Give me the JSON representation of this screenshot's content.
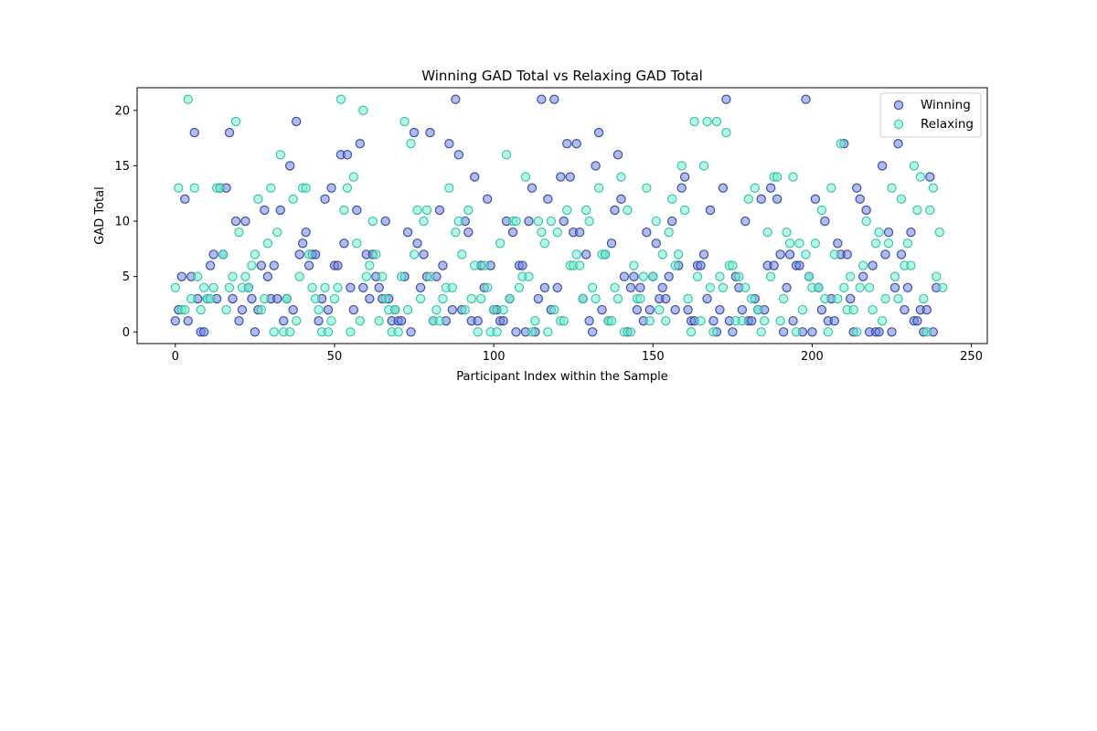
{
  "chart_data": {
    "type": "scatter",
    "title": "Winning GAD Total vs Relaxing GAD Total",
    "xlabel": "Participant Index within the Sample",
    "ylabel": "GAD Total",
    "xlim": [
      -12,
      255
    ],
    "ylim": [
      -1.05,
      22.05
    ],
    "xticks": [
      0,
      50,
      100,
      150,
      200,
      250
    ],
    "yticks": [
      0,
      5,
      10,
      15,
      20
    ],
    "grid": false,
    "legend_position": "top-right",
    "series": [
      {
        "name": "Winning",
        "face_color": "#6f86dd",
        "edge_color": "#2c3e9e",
        "y": [
          1,
          2,
          5,
          12,
          1,
          5,
          18,
          3,
          0,
          0,
          3,
          6,
          7,
          3,
          13,
          7,
          13,
          18,
          3,
          10,
          1,
          2,
          10,
          4,
          3,
          0,
          2,
          6,
          11,
          5,
          3,
          6,
          3,
          11,
          1,
          3,
          15,
          2,
          19,
          7,
          8,
          9,
          6,
          7,
          7,
          1,
          3,
          12,
          2,
          13,
          6,
          6,
          16,
          8,
          16,
          4,
          2,
          11,
          17,
          4,
          7,
          3,
          7,
          5,
          4,
          3,
          10,
          3,
          1,
          2,
          1,
          1,
          5,
          9,
          0,
          18,
          8,
          4,
          7,
          5,
          18,
          1,
          5,
          11,
          6,
          1,
          17,
          2,
          21,
          16,
          2,
          10,
          9,
          1,
          14,
          1,
          6,
          4,
          12,
          6,
          2,
          2,
          1,
          1,
          10,
          3,
          9,
          0,
          6,
          6,
          0,
          10,
          13,
          0,
          3,
          21,
          4,
          12,
          2,
          21,
          4,
          14,
          10,
          17,
          14,
          9,
          17,
          9,
          3,
          7,
          1,
          0,
          15,
          18,
          2,
          7,
          1,
          8,
          11,
          16,
          12,
          5,
          0,
          4,
          5,
          2,
          4,
          1,
          9,
          2,
          5,
          8,
          3,
          4,
          3,
          5,
          10,
          2,
          6,
          13,
          14,
          2,
          1,
          1,
          6,
          6,
          7,
          3,
          11,
          1,
          0,
          2,
          13,
          21,
          1,
          0,
          5,
          4,
          2,
          10,
          1,
          1,
          3,
          2,
          12,
          2,
          6,
          13,
          6,
          12,
          7,
          0,
          4,
          7,
          1,
          6,
          6,
          0,
          21,
          5,
          0,
          12,
          4,
          2,
          10,
          1,
          3,
          1,
          8,
          7,
          17,
          7,
          3,
          0,
          13,
          12,
          5,
          11,
          0,
          6,
          0,
          0,
          15,
          7,
          9,
          0,
          4,
          17,
          7,
          2,
          4,
          9,
          1,
          1,
          2,
          0,
          2,
          14,
          0,
          4
        ]
      },
      {
        "name": "Relaxing",
        "face_color": "#7cf2d6",
        "edge_color": "#2bbf9d",
        "y": [
          4,
          13,
          2,
          2,
          21,
          3,
          13,
          5,
          2,
          4,
          3,
          3,
          4,
          13,
          13,
          7,
          2,
          4,
          5,
          19,
          9,
          4,
          5,
          4,
          6,
          7,
          12,
          2,
          3,
          8,
          13,
          0,
          9,
          16,
          0,
          3,
          0,
          12,
          1,
          5,
          13,
          13,
          7,
          4,
          3,
          2,
          0,
          4,
          0,
          1,
          3,
          4,
          21,
          11,
          13,
          0,
          14,
          8,
          1,
          20,
          5,
          6,
          10,
          7,
          1,
          5,
          3,
          2,
          0,
          2,
          0,
          5,
          19,
          2,
          17,
          7,
          11,
          3,
          10,
          11,
          5,
          1,
          2,
          1,
          3,
          4,
          13,
          4,
          9,
          10,
          7,
          2,
          11,
          3,
          6,
          0,
          3,
          6,
          4,
          0,
          2,
          0,
          8,
          2,
          16,
          3,
          10,
          10,
          4,
          5,
          14,
          5,
          0,
          1,
          10,
          9,
          8,
          0,
          10,
          2,
          9,
          1,
          1,
          11,
          6,
          6,
          7,
          6,
          3,
          11,
          10,
          4,
          3,
          13,
          7,
          7,
          1,
          1,
          4,
          3,
          14,
          0,
          11,
          0,
          6,
          3,
          3,
          5,
          13,
          1,
          5,
          10,
          2,
          7,
          1,
          9,
          12,
          6,
          7,
          15,
          11,
          3,
          0,
          19,
          5,
          1,
          15,
          19,
          4,
          0,
          19,
          5,
          4,
          18,
          6,
          6,
          1,
          5,
          1,
          4,
          12,
          3,
          13,
          2,
          0,
          1,
          9,
          5,
          14,
          14,
          1,
          3,
          9,
          8,
          14,
          0,
          8,
          2,
          7,
          5,
          4,
          8,
          4,
          11,
          3,
          0,
          13,
          7,
          3,
          17,
          4,
          2,
          5,
          2,
          0,
          4,
          6,
          10,
          4,
          2,
          8,
          9,
          1,
          3,
          8,
          13,
          5,
          3,
          12,
          6,
          8,
          6,
          15,
          11,
          14,
          3,
          0,
          11,
          13,
          5,
          9,
          4
        ]
      }
    ]
  }
}
